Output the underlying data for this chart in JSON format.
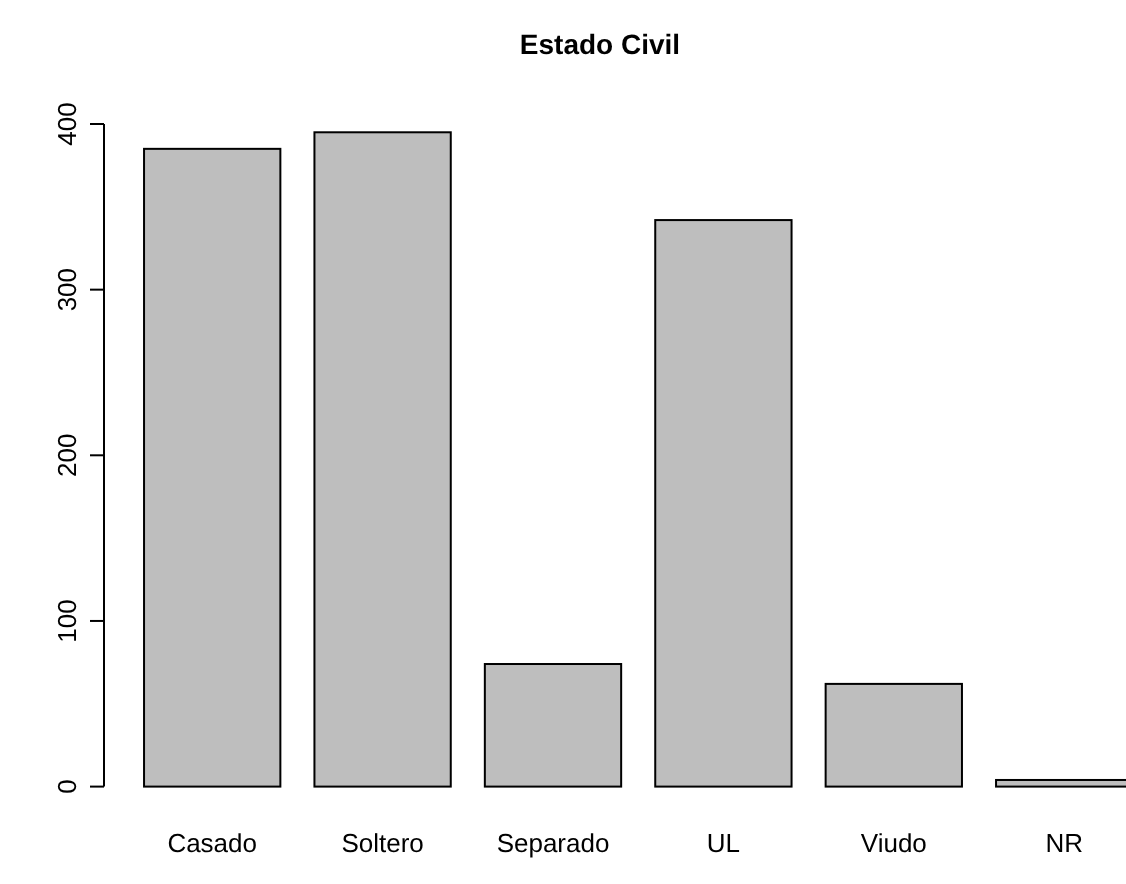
{
  "chart_data": {
    "type": "bar",
    "title": "Estado Civil",
    "categories": [
      "Casado",
      "Soltero",
      "Separado",
      "UL",
      "Viudo",
      "NR"
    ],
    "values": [
      385,
      395,
      74,
      342,
      62,
      4
    ],
    "color": "#bebebe",
    "ylim": [
      0,
      400
    ],
    "yticks": [
      0,
      100,
      200,
      300,
      400
    ],
    "grid": false
  }
}
